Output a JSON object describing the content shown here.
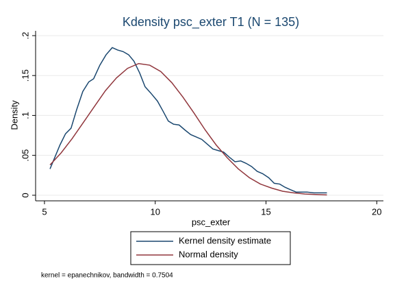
{
  "chart_data": {
    "type": "line",
    "title": "Kdensity psc_exter T1 (N = 135)",
    "x_label": "psc_exter",
    "y_label": "Density",
    "note": "kernel = epanechnikov, bandwidth = 0.7504",
    "xlim": [
      4.6,
      20.3
    ],
    "xticks": [
      5,
      10,
      15,
      20
    ],
    "ylim": [
      -0.007,
      0.206
    ],
    "yticks": [
      0,
      {
        "value": 0.05,
        "label": ".05"
      },
      {
        "value": 0.1,
        "label": ".1"
      },
      {
        "value": 0.15,
        "label": ".15"
      },
      {
        "value": 0.2,
        "label": ".2"
      }
    ],
    "grid": true,
    "legend": "bottom",
    "series": [
      {
        "name": "Kernel density estimate",
        "color": "#1a476f",
        "x": [
          5.25,
          5.7,
          5.95,
          6.2,
          6.45,
          6.73,
          7.0,
          7.22,
          7.5,
          7.78,
          8.06,
          8.3,
          8.55,
          8.8,
          9.04,
          9.3,
          9.54,
          9.8,
          10.1,
          10.34,
          10.59,
          10.83,
          11.08,
          11.33,
          11.6,
          11.85,
          12.1,
          12.35,
          12.6,
          12.84,
          13.09,
          13.33,
          13.6,
          13.86,
          14.1,
          14.35,
          14.6,
          14.85,
          15.12,
          15.37,
          15.62,
          15.86,
          16.1,
          16.36,
          16.6,
          16.85,
          17.16,
          17.75
        ],
        "values": [
          0.033,
          0.063,
          0.077,
          0.084,
          0.107,
          0.13,
          0.142,
          0.146,
          0.163,
          0.176,
          0.185,
          0.182,
          0.18,
          0.176,
          0.168,
          0.153,
          0.136,
          0.128,
          0.118,
          0.106,
          0.093,
          0.089,
          0.088,
          0.082,
          0.076,
          0.073,
          0.07,
          0.064,
          0.058,
          0.056,
          0.054,
          0.048,
          0.042,
          0.043,
          0.04,
          0.036,
          0.03,
          0.027,
          0.022,
          0.015,
          0.014,
          0.01,
          0.007,
          0.004,
          0.004,
          0.004,
          0.003,
          0.003
        ]
      },
      {
        "name": "Normal density",
        "color": "#90353b",
        "x": [
          5.25,
          5.75,
          6.25,
          6.75,
          7.25,
          7.75,
          8.25,
          8.75,
          9.25,
          9.75,
          10.25,
          10.75,
          11.25,
          11.75,
          12.25,
          12.75,
          13.25,
          13.75,
          14.25,
          14.75,
          15.25,
          15.75,
          16.25,
          16.75,
          17.25,
          17.75
        ],
        "values": [
          0.038,
          0.053,
          0.071,
          0.091,
          0.111,
          0.131,
          0.147,
          0.159,
          0.165,
          0.163,
          0.155,
          0.141,
          0.123,
          0.103,
          0.082,
          0.063,
          0.047,
          0.033,
          0.022,
          0.014,
          0.009,
          0.005,
          0.003,
          0.0016,
          0.0009,
          0.0004
        ]
      }
    ]
  }
}
